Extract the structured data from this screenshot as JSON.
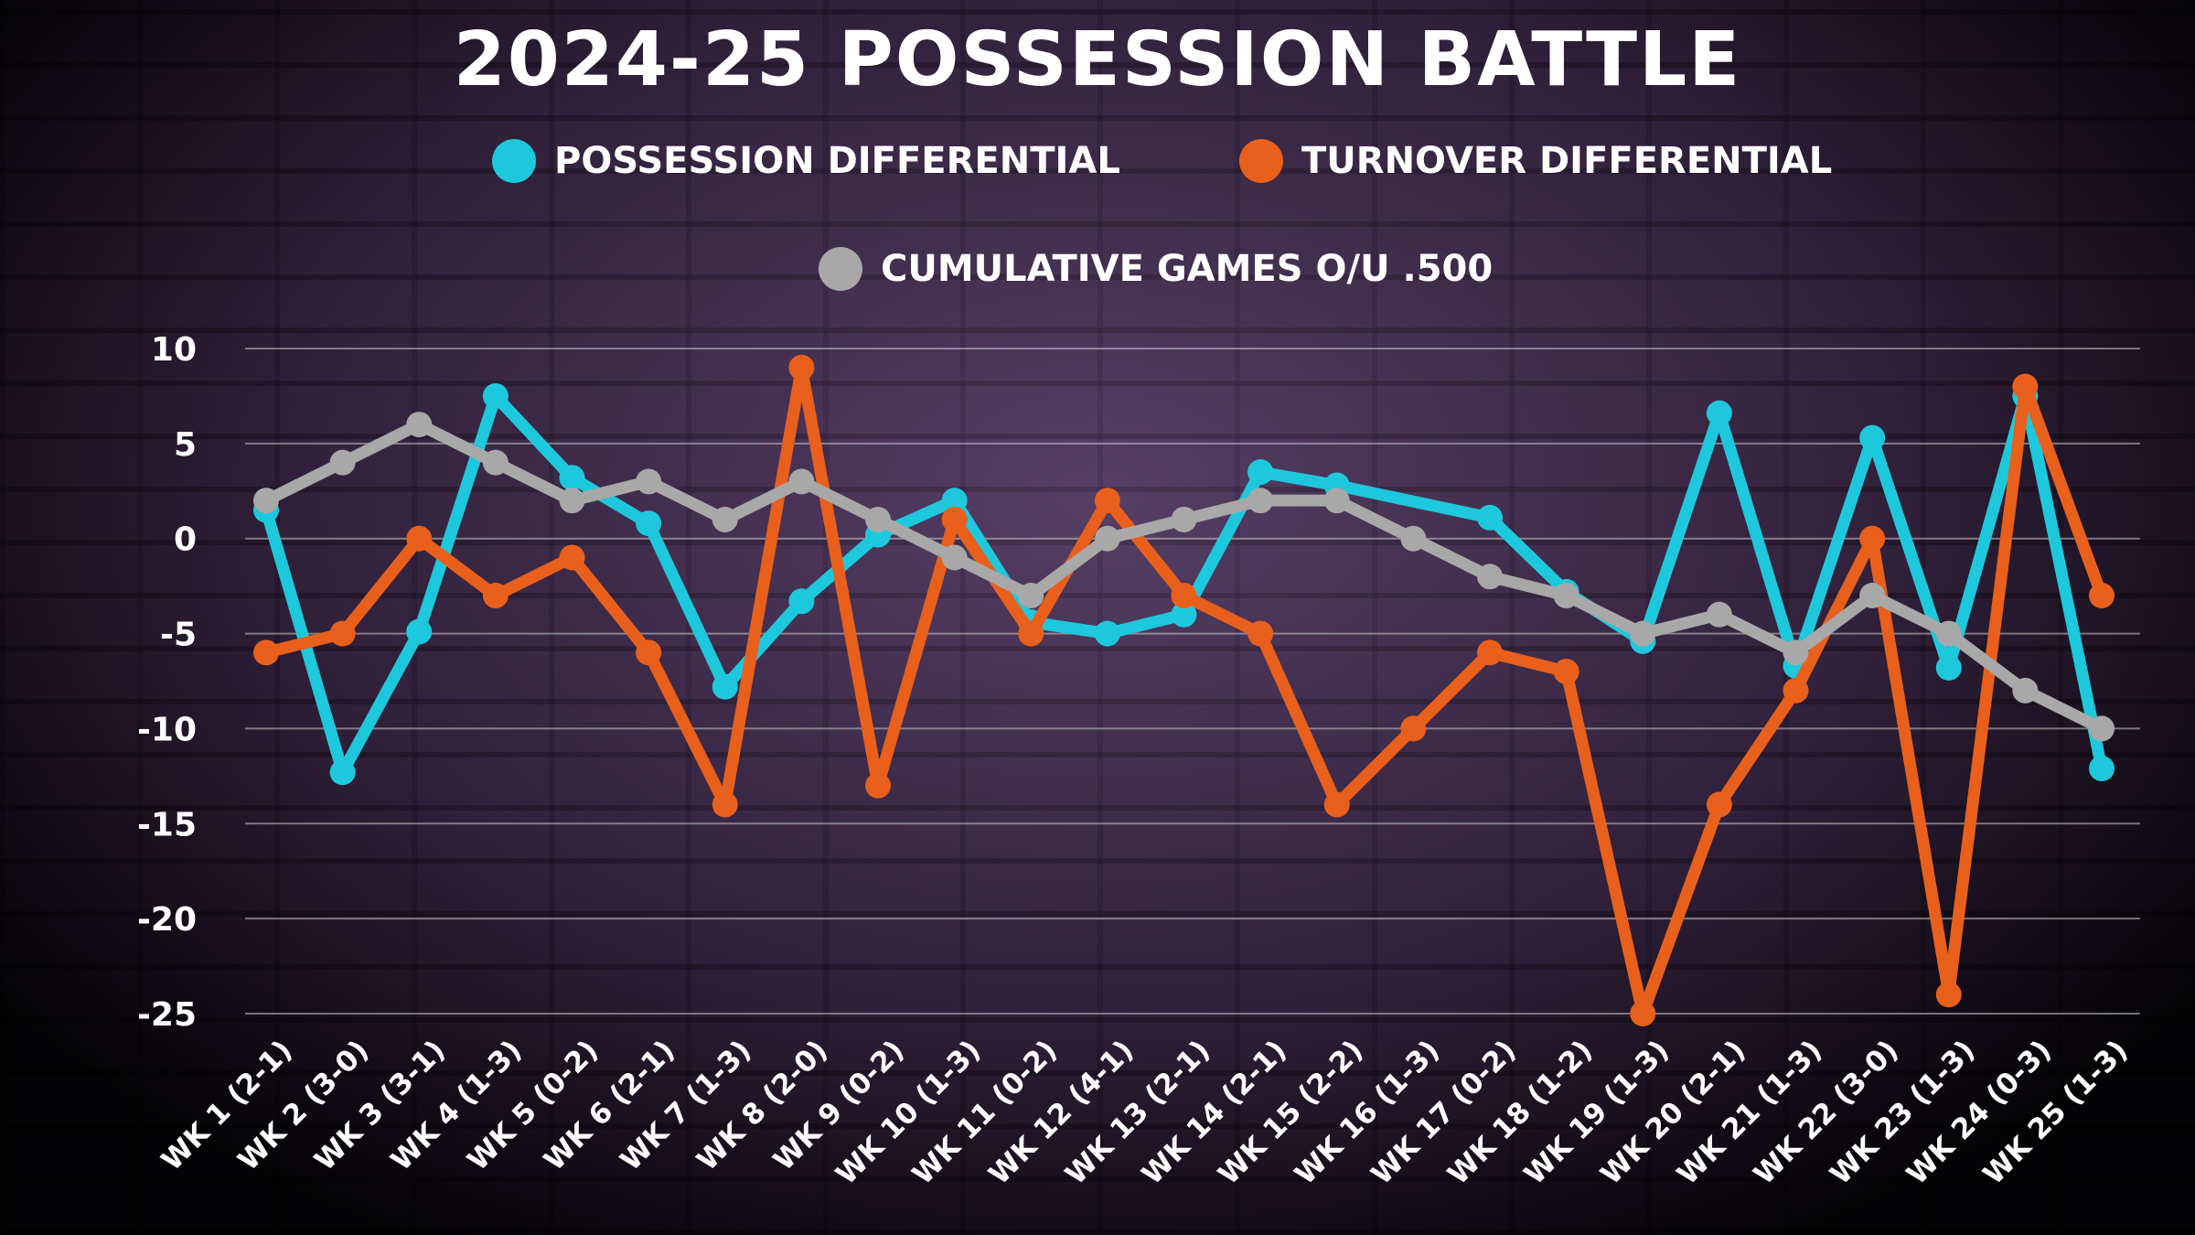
{
  "chart_data": {
    "type": "line",
    "title": "2024-25 POSSESSION BATTLE",
    "xlabel": "",
    "ylabel": "",
    "ylim": [
      -25,
      10
    ],
    "yticks": [
      10,
      5,
      0,
      -5,
      -10,
      -15,
      -20,
      -25
    ],
    "grid": true,
    "legend_placement": "top",
    "categories": [
      "WK 1 (2-1)",
      "WK 2 (3-0)",
      "WK 3 (3-1)",
      "WK 4 (1-3)",
      "WK 5 (0-2)",
      "WK 6 (2-1)",
      "WK 7 (1-3)",
      "WK 8 (2-0)",
      "WK 9 (0-2)",
      "WK 10 (1-3)",
      "WK 11 (0-2)",
      "WK 12 (4-1)",
      "WK 13 (2-1)",
      "WK 14 (2-1)",
      "WK 15 (2-2)",
      "WK 16 (1-3)",
      "WK 17 (0-2)",
      "WK 18 (1-2)",
      "WK 19 (1-3)",
      "WK 20 (2-1)",
      "WK 21 (1-3)",
      "WK 22 (3-0)",
      "WK 23 (1-3)",
      "WK 24 (0-3)",
      "WK 25 (1-3)"
    ],
    "series": [
      {
        "name": "POSSESSION DIFFERENTIAL",
        "color": "#1ec8dc",
        "values": [
          1.5,
          -12.3,
          -4.9,
          7.5,
          3.2,
          0.8,
          -7.8,
          -3.3,
          0.2,
          2,
          -4.4,
          -5,
          -4,
          3.5,
          2.8,
          null,
          1.1,
          -2.8,
          -5.4,
          6.6,
          -6.7,
          5.3,
          -6.8,
          7.5,
          -12.1
        ]
      },
      {
        "name": "TURNOVER DIFFERENTIAL",
        "color": "#e8601c",
        "values": [
          -6,
          -5,
          0,
          -3,
          -1,
          -6,
          -14,
          9,
          -13,
          1,
          -5,
          2,
          -3,
          -5,
          -14,
          -10,
          -6,
          -7,
          -25,
          -14,
          -8,
          0,
          -24,
          8,
          -3
        ]
      },
      {
        "name": "CUMULATIVE GAMES O/U .500",
        "color": "#a8a8a8",
        "values": [
          2,
          4,
          6,
          4,
          2,
          3,
          1,
          3,
          1,
          -1,
          -3,
          0,
          1,
          2,
          2,
          0,
          -2,
          -3,
          -5,
          -4,
          -6,
          -3,
          -5,
          -8,
          -10
        ]
      }
    ]
  }
}
